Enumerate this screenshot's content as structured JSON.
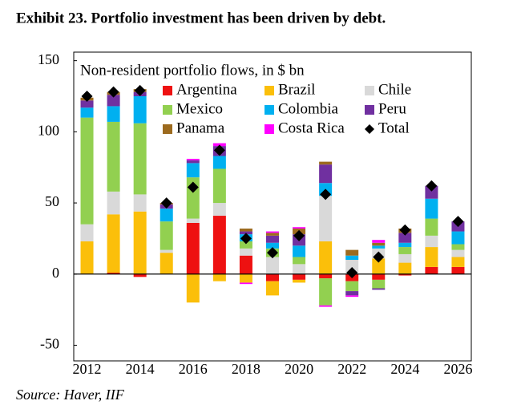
{
  "chart_data": {
    "type": "stacked_bar",
    "title": "Exhibit 23. Portfolio investment has been driven by debt.",
    "legend_title": "Non-resident portfolio flows, in $ bn",
    "source": "Source: Haver, IIF",
    "categories": [
      2012,
      null,
      2014,
      null,
      2016,
      null,
      2018,
      null,
      2020,
      null,
      2022,
      null,
      2024,
      null,
      2026
    ],
    "ylim": [
      -61,
      156
    ],
    "yticks": [
      -50,
      0,
      50,
      100,
      150
    ],
    "grid": false,
    "series": [
      {
        "name": "Argentina",
        "color": "#ee1111",
        "values": [
          0,
          1,
          -2,
          0,
          36,
          41,
          13,
          -5,
          -4,
          -3,
          -5,
          -4,
          -1,
          5,
          5
        ]
      },
      {
        "name": "Brazil",
        "color": "#fbbf0a",
        "values": [
          23,
          41,
          44,
          15,
          -20,
          -5,
          -6,
          -10,
          -2,
          23,
          0,
          11,
          8,
          14,
          7
        ]
      },
      {
        "name": "Chile",
        "color": "#d9d9d9",
        "values": [
          12,
          16,
          12,
          2,
          3,
          9,
          5,
          12,
          7,
          32,
          10,
          7,
          6,
          8,
          5
        ]
      },
      {
        "name": "Mexico",
        "color": "#92d050",
        "values": [
          75,
          49,
          50,
          20,
          29,
          24,
          5,
          6,
          5,
          -19,
          -7,
          -6,
          5,
          12,
          4
        ]
      },
      {
        "name": "Colombia",
        "color": "#00b0f0",
        "values": [
          7,
          11,
          19,
          9,
          10,
          9,
          5,
          4,
          8,
          9,
          3,
          2,
          3,
          14,
          9
        ]
      },
      {
        "name": "Peru",
        "color": "#7030a0",
        "values": [
          5,
          8,
          3,
          3,
          2,
          7,
          2,
          5,
          8,
          13,
          -3,
          -1,
          7,
          9,
          7
        ]
      },
      {
        "name": "Panama",
        "color": "#9c6a1e",
        "values": [
          2,
          2,
          2,
          1,
          0,
          0,
          2,
          2,
          4,
          2,
          4,
          2,
          3,
          0,
          0
        ]
      },
      {
        "name": "Costa Rica",
        "color": "#ff00ff",
        "values": [
          0,
          0,
          0,
          0,
          1,
          2,
          -1,
          1,
          1,
          -1,
          -1,
          2,
          0,
          0,
          0
        ]
      }
    ],
    "total": {
      "name": "Total",
      "type": "scatter",
      "marker": "diamond",
      "color": "#000000",
      "values": [
        125,
        128,
        129,
        50,
        61,
        87,
        25,
        15,
        27,
        56,
        1,
        12,
        31,
        62,
        37
      ]
    }
  }
}
